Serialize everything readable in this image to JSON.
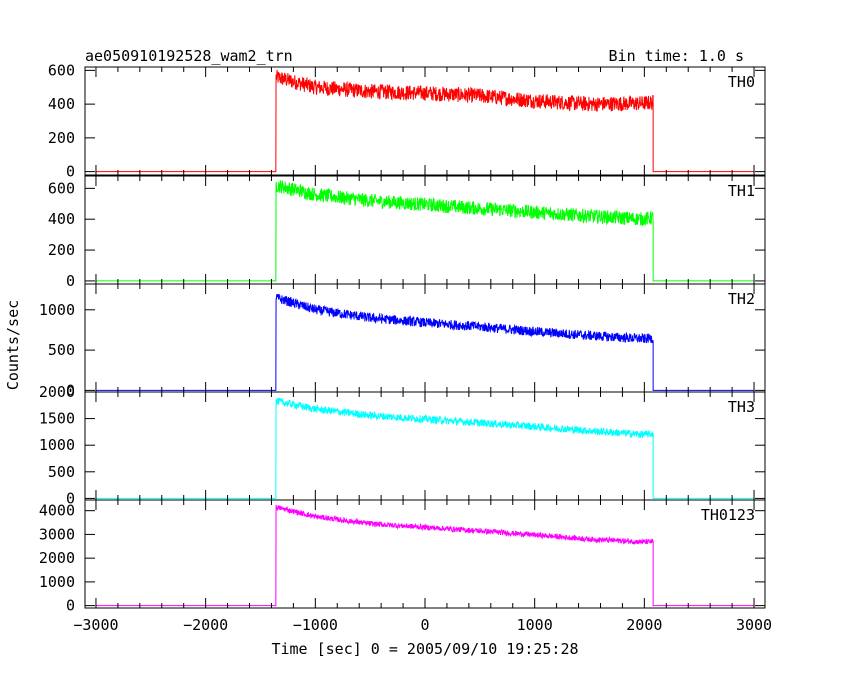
{
  "chart_data": {
    "type": "line",
    "title": "ae050910192528_wam2_trn",
    "subtitle": "Bin time: 1.0 s",
    "xlabel": "Time [sec] 0 = 2005/09/10 19:25:28",
    "ylabel": "Counts/sec",
    "xlim": [
      -3100,
      3100
    ],
    "x_ticks": [
      "−3000",
      "−2000",
      "−1000",
      "0",
      "1000",
      "2000",
      "3000"
    ],
    "x_tick_values": [
      -3000,
      -2000,
      -1000,
      0,
      1000,
      2000,
      3000
    ],
    "grid": false,
    "panels": [
      {
        "name": "TH0",
        "color": "#ff0000",
        "ylim": [
          -20,
          620
        ],
        "y_ticks": [
          0,
          200,
          400,
          600
        ],
        "x": [
          -3000,
          -1360,
          -1358,
          -1000,
          -500,
          0,
          500,
          1000,
          1500,
          2000,
          2080,
          2082,
          3000
        ],
        "y": [
          0,
          0,
          560,
          500,
          475,
          465,
          450,
          420,
          400,
          405,
          410,
          0,
          0
        ],
        "noise": 45
      },
      {
        "name": "TH1",
        "color": "#00ff00",
        "ylim": [
          -20,
          680
        ],
        "y_ticks": [
          0,
          200,
          400,
          600
        ],
        "x": [
          -3000,
          -1360,
          -1358,
          -1000,
          -500,
          0,
          500,
          1000,
          1500,
          2000,
          2080,
          2082,
          3000
        ],
        "y": [
          0,
          0,
          620,
          560,
          520,
          495,
          470,
          445,
          420,
          400,
          410,
          0,
          0
        ],
        "noise": 45
      },
      {
        "name": "TH2",
        "color": "#0000ff",
        "ylim": [
          -20,
          1320
        ],
        "y_ticks": [
          0,
          500,
          1000
        ],
        "x": [
          -3000,
          -1360,
          -1358,
          -1000,
          -500,
          0,
          500,
          1000,
          1500,
          2000,
          2080,
          2082,
          3000
        ],
        "y": [
          0,
          0,
          1150,
          1000,
          900,
          840,
          790,
          730,
          680,
          640,
          650,
          0,
          0
        ],
        "noise": 60
      },
      {
        "name": "TH3",
        "color": "#00ffff",
        "ylim": [
          -30,
          2000
        ],
        "y_ticks": [
          0,
          500,
          1000,
          1500,
          2000
        ],
        "x": [
          -3000,
          -1360,
          -1358,
          -1000,
          -500,
          0,
          500,
          1000,
          1500,
          2000,
          2080,
          2082,
          3000
        ],
        "y": [
          0,
          0,
          1830,
          1680,
          1560,
          1490,
          1420,
          1350,
          1270,
          1200,
          1220,
          0,
          0
        ],
        "noise": 70
      },
      {
        "name": "TH0123",
        "color": "#ff00ff",
        "ylim": [
          -100,
          4450
        ],
        "y_ticks": [
          0,
          1000,
          2000,
          3000,
          4000
        ],
        "x": [
          -3000,
          -1360,
          -1358,
          -1000,
          -500,
          0,
          500,
          1000,
          1500,
          2000,
          2080,
          2082,
          3000
        ],
        "y": [
          0,
          0,
          4150,
          3750,
          3450,
          3300,
          3150,
          2980,
          2800,
          2680,
          2700,
          0,
          0
        ],
        "noise": 110
      }
    ]
  }
}
